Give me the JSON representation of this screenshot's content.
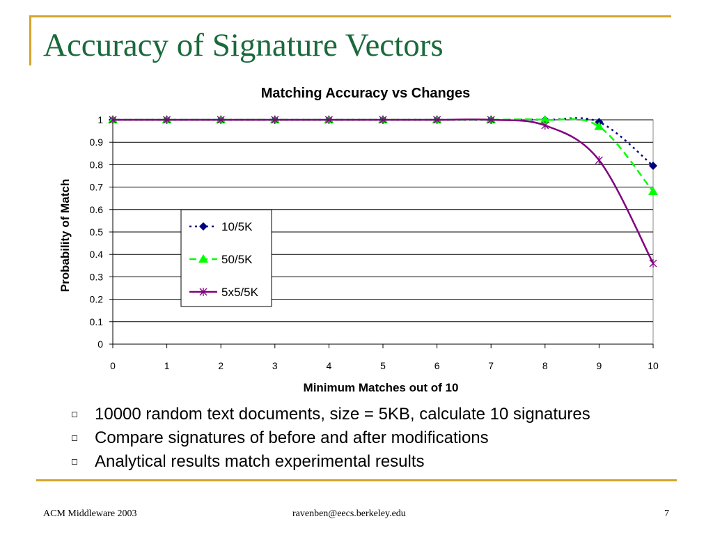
{
  "slide": {
    "title": "Accuracy of Signature Vectors",
    "bullets": [
      "10000 random text documents, size = 5KB, calculate 10 signatures",
      "Compare signatures of before and after modifications",
      "Analytical results match experimental results"
    ],
    "footer": {
      "left": "ACM Middleware 2003",
      "center": "ravenben@eecs.berkeley.edu",
      "page": "7"
    },
    "colors": {
      "accent_rule": "#d4a52a",
      "title": "#1a6a3c"
    }
  },
  "chart_data": {
    "type": "line",
    "title": "Matching Accuracy vs Changes",
    "xlabel": "Minimum Matches out of 10",
    "ylabel": "Probability of Match",
    "x": [
      0,
      1,
      2,
      3,
      4,
      5,
      6,
      7,
      8,
      9,
      10
    ],
    "xlim": [
      0,
      10
    ],
    "ylim": [
      0,
      1
    ],
    "xticks": [
      "0",
      "1",
      "2",
      "3",
      "4",
      "5",
      "6",
      "7",
      "8",
      "9",
      "10"
    ],
    "yticks": [
      "0",
      "0.1",
      "0.2",
      "0.3",
      "0.4",
      "0.5",
      "0.6",
      "0.7",
      "0.8",
      "0.9",
      "1"
    ],
    "grid": "horizontal",
    "legend_position": "center-left",
    "series": [
      {
        "name": "10/5K",
        "values": [
          1,
          1,
          1,
          1,
          1,
          1,
          1,
          1,
          1,
          0.99,
          0.795
        ],
        "color": "#000080",
        "dash": "dotted",
        "marker": "diamond"
      },
      {
        "name": "50/5K",
        "values": [
          1,
          1,
          1,
          1,
          1,
          1,
          1,
          1,
          1,
          0.97,
          0.68
        ],
        "color": "#00ff00",
        "dash": "dashed",
        "marker": "triangle"
      },
      {
        "name": "5x5/5K",
        "values": [
          1,
          1,
          1,
          1,
          1,
          1,
          1,
          1,
          0.975,
          0.82,
          0.36
        ],
        "color": "#800080",
        "dash": "solid",
        "marker": "star"
      }
    ]
  }
}
